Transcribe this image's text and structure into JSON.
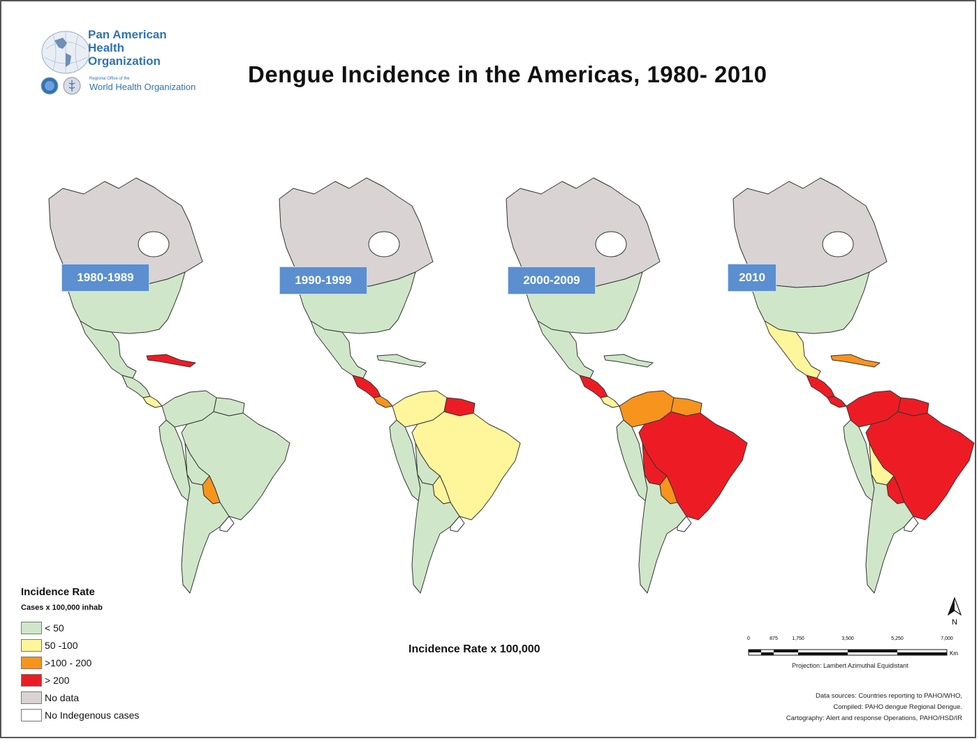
{
  "org": {
    "name_line1": "Pan American",
    "name_line2": "Health",
    "name_line3": "Organization",
    "sub_small": "Regional Office of the",
    "sub_who": "World Health Organization"
  },
  "title": "Dengue Incidence in the Americas, 1980- 2010",
  "colors": {
    "lt50": "#cfe7c8",
    "r50_100": "#fff59b",
    "r100_200": "#f7941d",
    "gt200": "#ed1c24",
    "nodata": "#d9d3d3",
    "none": "#ffffff",
    "period_box": "#5b8fcf"
  },
  "maps": [
    {
      "period": "1980-1989",
      "regions": {
        "north": "nodata",
        "usa": "lt50",
        "mexico": "lt50",
        "central": "lt50",
        "caribbean": "gt200",
        "panama": "r50_100",
        "brazil": "lt50",
        "north_sa": "lt50",
        "guianas": "lt50",
        "andes": "lt50",
        "bolivia": "lt50",
        "paraguay": "r100_200",
        "southern_cone": "lt50",
        "uruguay": "none"
      }
    },
    {
      "period": "1990-1999",
      "regions": {
        "north": "nodata",
        "usa": "lt50",
        "mexico": "lt50",
        "central": "gt200",
        "caribbean": "lt50",
        "panama": "r100_200",
        "brazil": "r50_100",
        "north_sa": "r50_100",
        "guianas": "gt200",
        "andes": "lt50",
        "bolivia": "lt50",
        "paraguay": "r50_100",
        "southern_cone": "lt50",
        "uruguay": "none"
      }
    },
    {
      "period": "2000-2009",
      "regions": {
        "north": "nodata",
        "usa": "lt50",
        "mexico": "lt50",
        "central": "gt200",
        "caribbean": "lt50",
        "panama": "r50_100",
        "brazil": "gt200",
        "north_sa": "r100_200",
        "guianas": "r100_200",
        "andes": "lt50",
        "bolivia": "gt200",
        "paraguay": "r100_200",
        "southern_cone": "lt50",
        "uruguay": "none"
      }
    },
    {
      "period": "2010",
      "regions": {
        "north": "nodata",
        "usa": "lt50",
        "mexico": "r50_100",
        "central": "gt200",
        "caribbean": "r100_200",
        "panama": "gt200",
        "brazil": "gt200",
        "north_sa": "gt200",
        "guianas": "gt200",
        "andes": "lt50",
        "bolivia": "r50_100",
        "paraguay": "gt200",
        "southern_cone": "lt50",
        "uruguay": "none"
      }
    }
  ],
  "legend": {
    "title": "Incidence Rate",
    "subtitle": "Cases x 100,000 inhab",
    "items": [
      {
        "label": "< 50",
        "key": "lt50"
      },
      {
        "label": "50 -100",
        "key": "r50_100"
      },
      {
        "label": ">100 - 200",
        "key": "r100_200"
      },
      {
        "label": "> 200",
        "key": "gt200"
      },
      {
        "label": "No data",
        "key": "nodata"
      },
      {
        "label": "No Indegenous cases",
        "key": "none"
      }
    ]
  },
  "bottom_label": "Incidence Rate x 100,000",
  "north_label": "N",
  "scale": {
    "ticks": [
      "0",
      "875",
      "1,750",
      "3,500",
      "5,250",
      "7,000"
    ],
    "unit": "Km"
  },
  "projection": "Projection: Lambert Azimuthal Equidistant",
  "sources": [
    "Data sources: Countries reporting to PAHO/WHO,",
    "Compiled: PAHO dengue Regional Dengue.",
    "Cartography: Alert and response Operations, PAHO/HSD/IR"
  ]
}
